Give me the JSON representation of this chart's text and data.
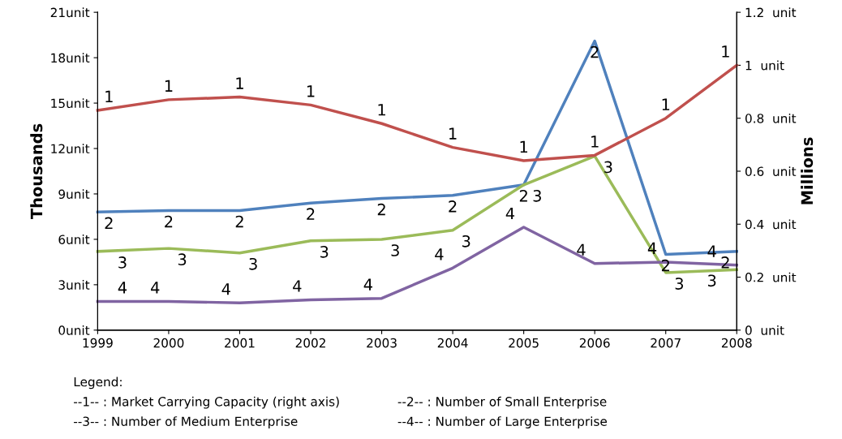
{
  "chart_data": {
    "type": "line",
    "categories": [
      "1999",
      "2000",
      "2001",
      "2002",
      "2003",
      "2004",
      "2005",
      "2006",
      "2007",
      "2008"
    ],
    "ylabel": "Thousands",
    "y2label": "Millions",
    "ylim": [
      0,
      21
    ],
    "yticks": [
      {
        "value": 0,
        "label": "0unit"
      },
      {
        "value": 3,
        "label": "3unit"
      },
      {
        "value": 6,
        "label": "6unit"
      },
      {
        "value": 9,
        "label": "9unit"
      },
      {
        "value": 12,
        "label": "12unit"
      },
      {
        "value": 15,
        "label": "15unit"
      },
      {
        "value": 18,
        "label": "18unit"
      },
      {
        "value": 21,
        "label": "21unit"
      }
    ],
    "y2lim": [
      0,
      1.2
    ],
    "y2ticks": [
      {
        "value": 0,
        "label": "0  unit"
      },
      {
        "value": 0.2,
        "label": "0.2  unit"
      },
      {
        "value": 0.4,
        "label": "0.4  unit"
      },
      {
        "value": 0.6,
        "label": "0.6  unit"
      },
      {
        "value": 0.8,
        "label": "0.8  unit"
      },
      {
        "value": 1.0,
        "label": "1  unit"
      },
      {
        "value": 1.2,
        "label": "1.2  unit"
      }
    ],
    "grid": false,
    "legend": false,
    "series": [
      {
        "name": "1",
        "color": "#c0504d",
        "axis": "y2",
        "values": [
          0.83,
          0.87,
          0.88,
          0.85,
          0.78,
          0.69,
          0.64,
          0.66,
          0.8,
          1.0
        ]
      },
      {
        "name": "2",
        "color": "#4f81bd",
        "values": [
          7.8,
          7.9,
          7.9,
          8.4,
          8.7,
          8.9,
          9.6,
          19.1,
          5.0,
          5.2
        ]
      },
      {
        "name": "3",
        "color": "#9bbb59",
        "values": [
          5.2,
          5.4,
          5.1,
          5.9,
          6.0,
          6.6,
          9.6,
          11.5,
          3.8,
          4.0
        ]
      },
      {
        "name": "4",
        "color": "#8064a2",
        "values": [
          1.9,
          1.9,
          1.8,
          2.0,
          2.1,
          4.1,
          6.8,
          4.4,
          4.5,
          4.3
        ]
      }
    ],
    "annotations": [
      "Legend:",
      "--1-- : Market Carrying Capacity (right axis)",
      "--2-- : Number of Small Enterprise",
      "--3-- : Number of Medium Enterprise",
      "--4-- : Number of Large Enterprise"
    ]
  }
}
